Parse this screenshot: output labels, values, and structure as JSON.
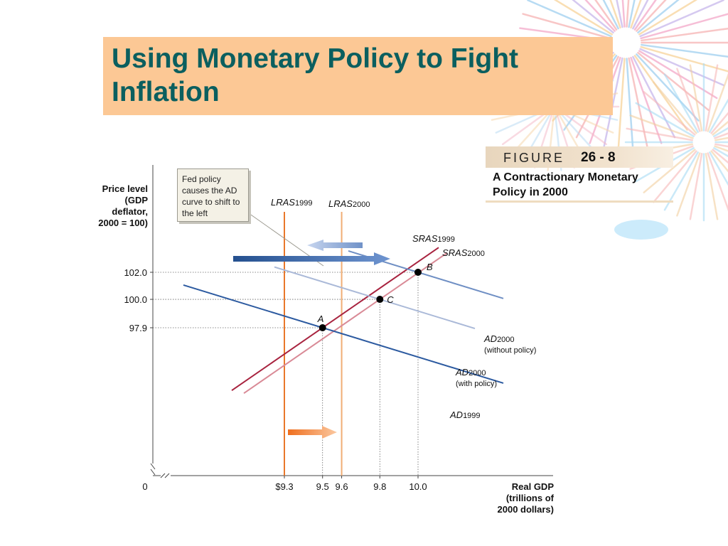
{
  "slide": {
    "title": "Using Monetary Policy to Fight Inflation",
    "figure_word": "FIGURE",
    "figure_number": "26 - 8",
    "figure_caption": "A Contractionary Monetary Policy in 2000",
    "callout": "Fed policy causes the AD curve to shift to the left"
  },
  "chart_data": {
    "type": "line",
    "ylabel_lines": [
      "Price level",
      "(GDP",
      "deflator,",
      "2000 = 100)"
    ],
    "xlabel_lines": [
      "Real GDP",
      "(trillions of",
      "2000 dollars)"
    ],
    "origin_label": "0",
    "x_ticks": [
      {
        "value": 9.3,
        "label": "$9.3"
      },
      {
        "value": 9.5,
        "label": "9.5"
      },
      {
        "value": 9.6,
        "label": "9.6"
      },
      {
        "value": 9.8,
        "label": "9.8"
      },
      {
        "value": 10.0,
        "label": "10.0"
      }
    ],
    "y_ticks": [
      {
        "value": 97.9,
        "label": "97.9"
      },
      {
        "value": 100.0,
        "label": "100.0"
      },
      {
        "value": 102.0,
        "label": "102.0"
      }
    ],
    "points": [
      {
        "label": "A",
        "x": 9.5,
        "y": 97.9
      },
      {
        "label": "B",
        "x": 10.0,
        "y": 102.0
      },
      {
        "label": "C",
        "x": 9.8,
        "y": 100.0
      }
    ],
    "series": [
      {
        "name": "LRAS",
        "sub": "1999",
        "kind": "vertical",
        "x": 9.3,
        "color": "#e9782b"
      },
      {
        "name": "LRAS",
        "sub": "2000",
        "kind": "vertical",
        "x": 9.6,
        "color": "#f0ad74"
      },
      {
        "name": "SRAS",
        "sub": "1999",
        "kind": "upward",
        "color": "#a8233f",
        "through": [
          9.5,
          97.9
        ]
      },
      {
        "name": "SRAS",
        "sub": "2000",
        "kind": "upward",
        "color": "#d98a96",
        "through": [
          9.8,
          100.0
        ]
      },
      {
        "name": "AD",
        "sub": "1999",
        "kind": "downward",
        "color": "#2c5aa0",
        "through": [
          9.5,
          97.9
        ]
      },
      {
        "name": "AD",
        "sub": "2000",
        "note": "(without policy)",
        "kind": "downward",
        "color": "#6f8fc4",
        "through": [
          10.0,
          102.0
        ]
      },
      {
        "name": "AD",
        "sub": "2000",
        "note": "(with policy)",
        "kind": "downward",
        "color": "#aab9d8",
        "through": [
          9.8,
          100.0
        ]
      }
    ],
    "colors": {
      "axis": "#444444",
      "guide": "#666666",
      "arrow_blue": "#2c5aa0",
      "arrow_orange": "#ef7b2a"
    }
  }
}
